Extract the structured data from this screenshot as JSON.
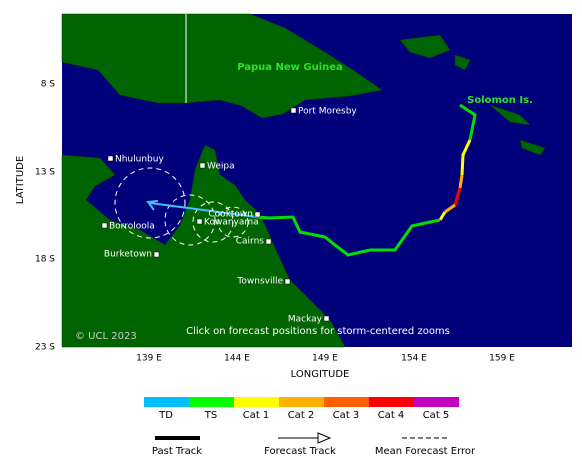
{
  "map": {
    "regions": [
      "Papua New Guinea",
      "Solomon Is."
    ],
    "places": [
      "Port Moresby",
      "Nhulunbuy",
      "Weipa",
      "Borroloola",
      "Cooktown",
      "Kowanyama",
      "Cairns",
      "Burketown",
      "Townsville",
      "Mackay"
    ],
    "lat_ticks": [
      "8 S",
      "13 S",
      "18 S",
      "23 S"
    ],
    "lon_ticks": [
      "139 E",
      "144 E",
      "149 E",
      "154 E",
      "159 E"
    ],
    "y_label": "LATITUDE",
    "x_label": "LONGITUDE",
    "copyright": "© UCL 2023",
    "note": "Click on forecast positions for storm-centered zooms"
  },
  "legend": {
    "intensity": [
      "TD",
      "TS",
      "Cat 1",
      "Cat 2",
      "Cat 3",
      "Cat 4",
      "Cat 5"
    ],
    "tracks": [
      "Past Track",
      "Forecast Track",
      "Mean Forecast Error"
    ]
  }
}
